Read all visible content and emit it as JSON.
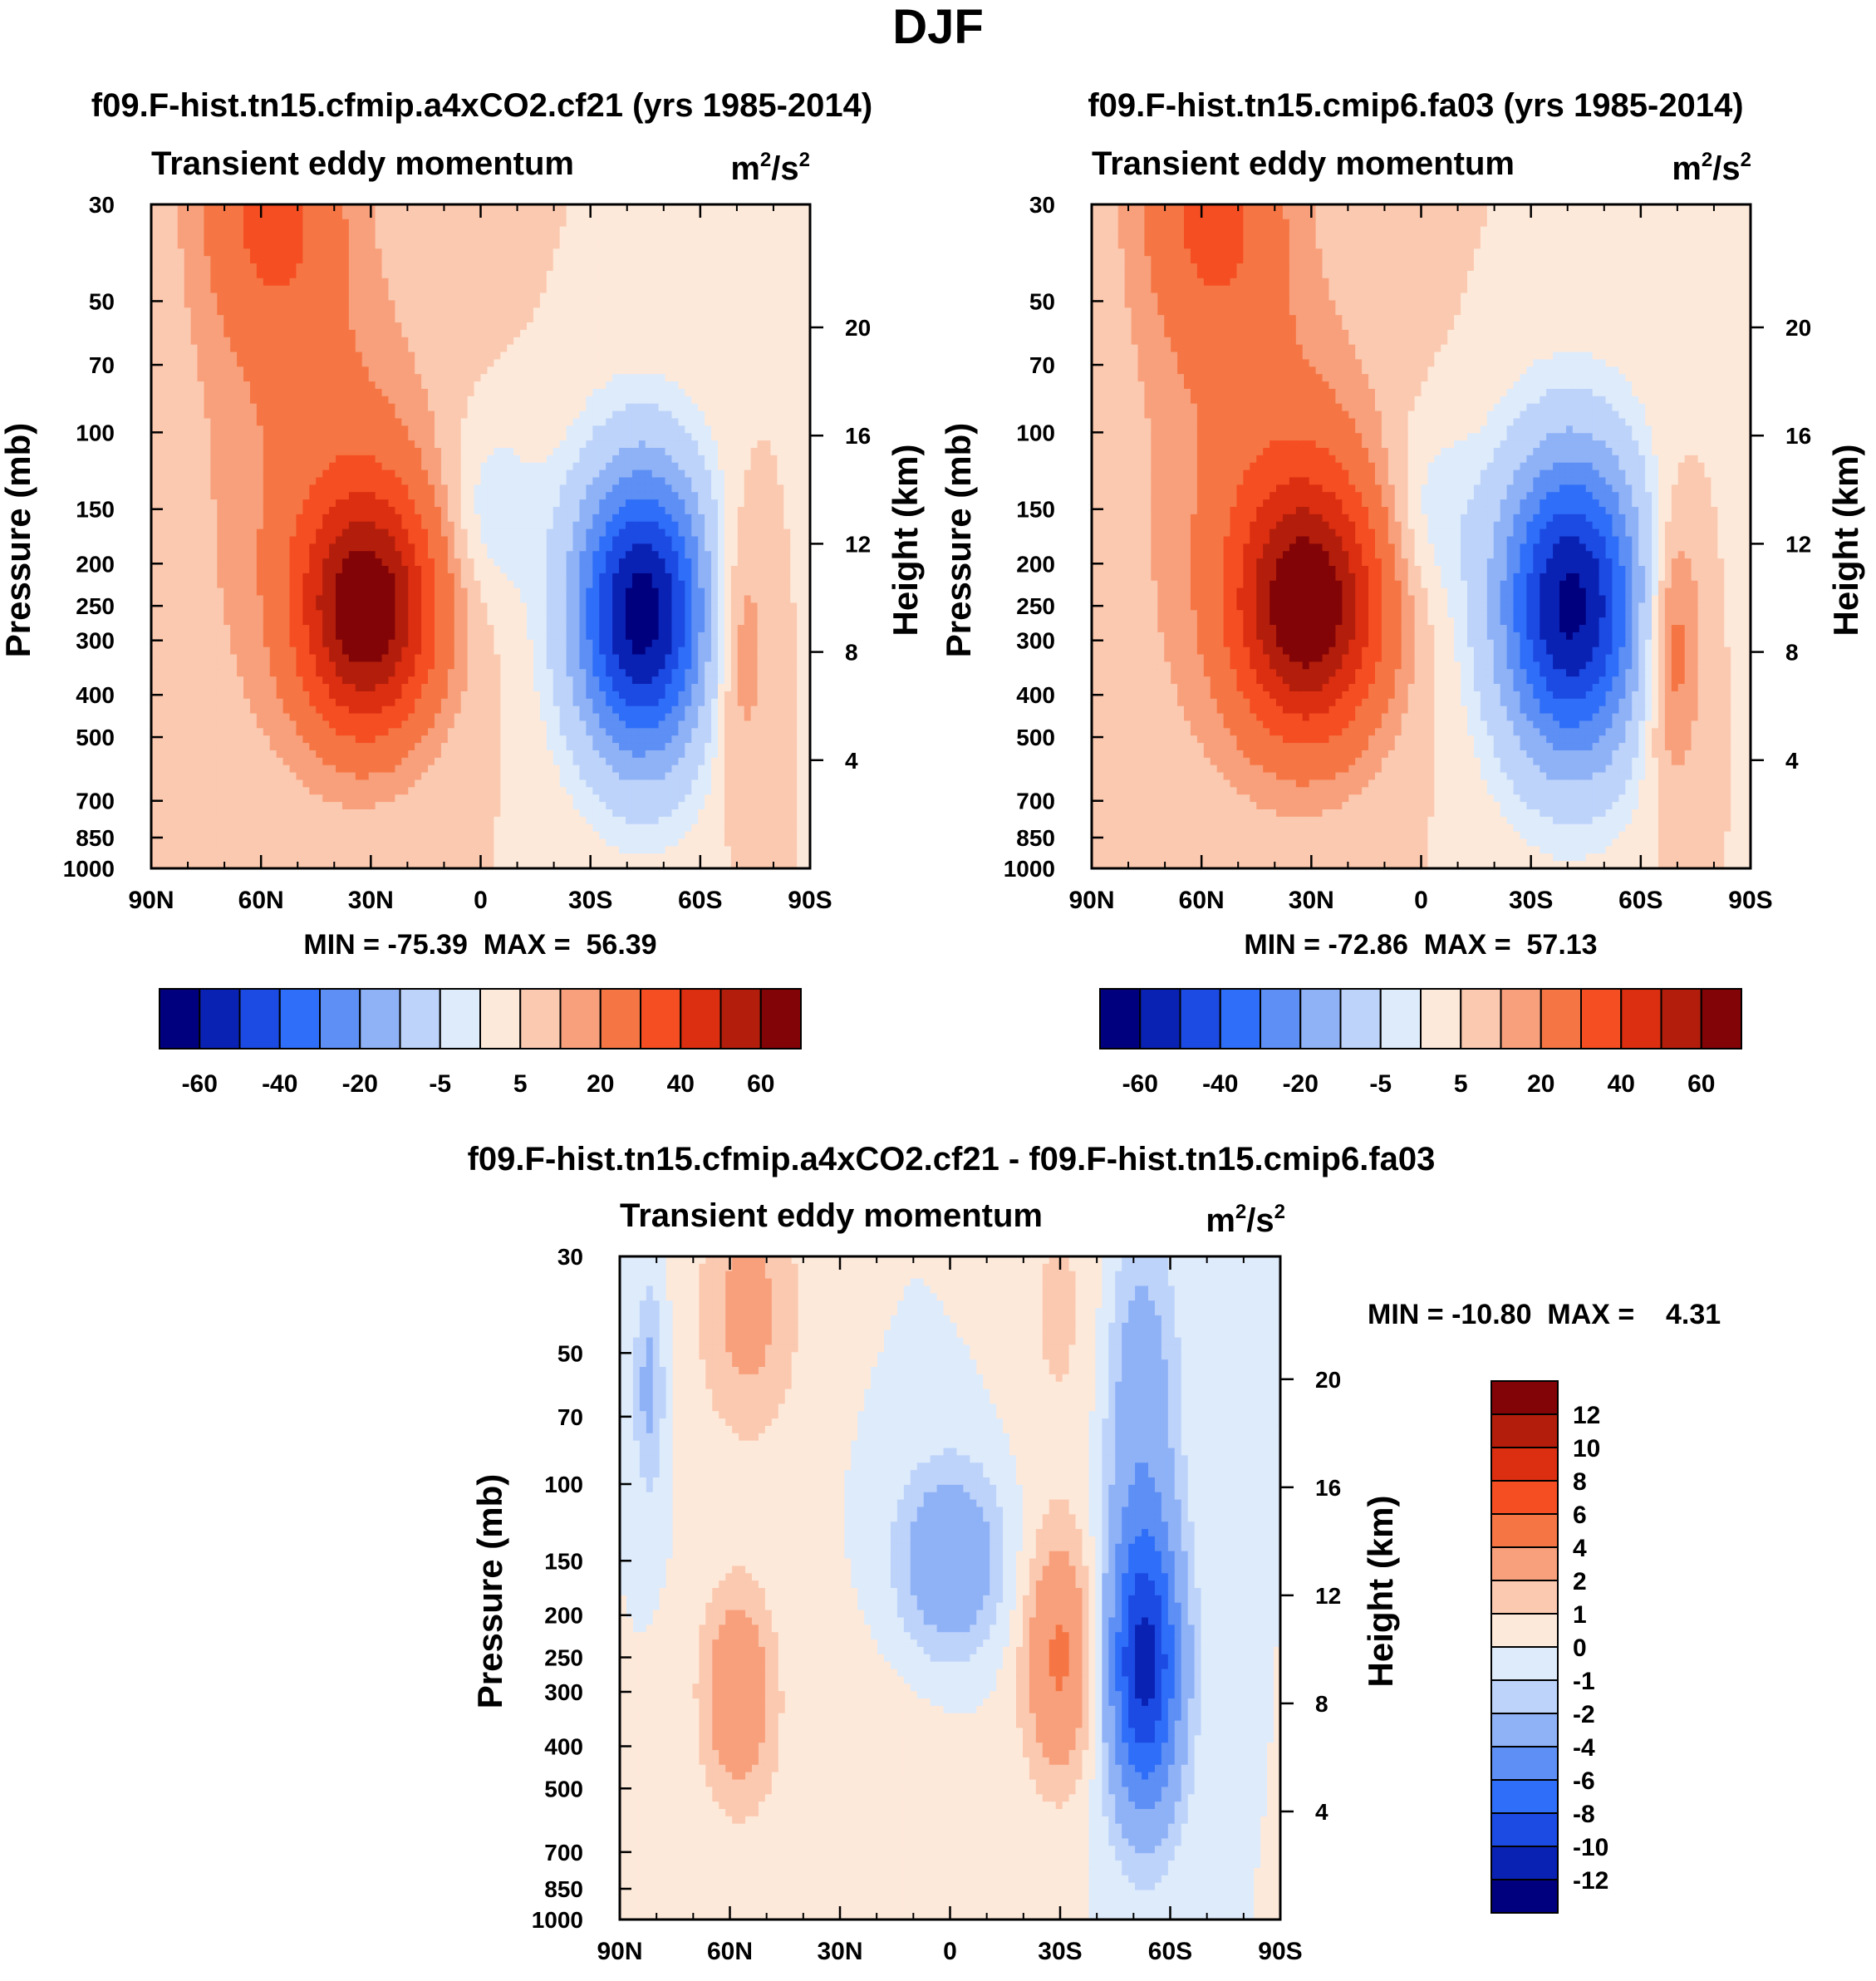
{
  "title": "DJF",
  "colors": {
    "panel_scale": [
      "#00007f",
      "#0a22b4",
      "#1c4be3",
      "#2f6ef8",
      "#5d8ff5",
      "#8fb2f7",
      "#bdd3fa",
      "#deebfb",
      "#fde9da",
      "#fbc9b0",
      "#f8a07c",
      "#f57644",
      "#f54e22",
      "#dc2e10",
      "#b21e0b",
      "#830407"
    ],
    "diff_scale": [
      "#00007f",
      "#0a22b4",
      "#1c4be3",
      "#2f6ef8",
      "#5d8ff5",
      "#8fb2f7",
      "#bdd3fa",
      "#deebfb",
      "#fde9da",
      "#fbc9b0",
      "#f8a07c",
      "#f57644",
      "#f54e22",
      "#dc2e10",
      "#b21e0b",
      "#830407"
    ]
  },
  "chart_data": [
    {
      "type": "contour",
      "id": "panel_a4xCO2",
      "title": "f09.F-hist.tn15.cfmip.a4xCO2.cf21 (yrs 1985-2014)",
      "subtitle": "Transient eddy momentum",
      "units": "m²/s²",
      "units_base": "m",
      "units_exp": "2",
      "units_sep": "/s",
      "units_exp2": "2",
      "xlabel": "",
      "ylabel": "Pressure (mb)",
      "ylabel_right": "Height (km)",
      "x_ticks": [
        "90N",
        "60N",
        "30N",
        "0",
        "30S",
        "60S",
        "90S"
      ],
      "x_values": [
        90,
        60,
        30,
        0,
        -30,
        -60,
        -90
      ],
      "xlim": [
        90,
        -90
      ],
      "y_ticks": [
        "30",
        "50",
        "70",
        "100",
        "150",
        "200",
        "250",
        "300",
        "400",
        "500",
        "700",
        "850",
        "1000"
      ],
      "y_values": [
        30,
        50,
        70,
        100,
        150,
        200,
        250,
        300,
        400,
        500,
        700,
        850,
        1000
      ],
      "ylim": [
        1000,
        30
      ],
      "right_ticks": [
        "20",
        "16",
        "12",
        "8",
        "4"
      ],
      "right_values": [
        20,
        16,
        12,
        8,
        4
      ],
      "min": -75.39,
      "max": 56.39,
      "stats_label": "MIN = -75.39  MAX =  56.39",
      "levels": [
        -70,
        -60,
        -50,
        -40,
        -30,
        -20,
        -10,
        -5,
        0,
        5,
        10,
        20,
        30,
        40,
        50,
        60
      ],
      "colorbar_labels": [
        "-60",
        "-40",
        "-20",
        "-5",
        "5",
        "20",
        "40",
        "60"
      ],
      "features": [
        {
          "lat": 31,
          "p": 260,
          "amp": 56.4,
          "sx": 13,
          "sy": 0.45
        },
        {
          "lat": 57,
          "p": 30,
          "amp": 22,
          "sx": 14,
          "sy": 0.55
        },
        {
          "lat": 40,
          "p": 110,
          "amp": 10,
          "sx": 20,
          "sy": 0.7
        },
        {
          "lat": -44,
          "p": 260,
          "amp": -75.4,
          "sx": 13,
          "sy": 0.55
        },
        {
          "lat": -3,
          "p": 150,
          "amp": -9,
          "sx": 9,
          "sy": 0.35
        },
        {
          "lat": -70,
          "p": 300,
          "amp": 14,
          "sx": 6,
          "sy": 0.5
        },
        {
          "lat": 75,
          "p": 350,
          "amp": 3,
          "sx": 25,
          "sy": 1.2
        }
      ]
    },
    {
      "type": "contour",
      "id": "panel_cmip6",
      "title": "f09.F-hist.tn15.cmip6.fa03 (yrs 1985-2014)",
      "subtitle": "Transient eddy momentum",
      "units": "m²/s²",
      "units_base": "m",
      "units_exp": "2",
      "units_sep": "/s",
      "units_exp2": "2",
      "xlabel": "",
      "ylabel": "Pressure (mb)",
      "ylabel_right": "Height (km)",
      "x_ticks": [
        "90N",
        "60N",
        "30N",
        "0",
        "30S",
        "60S",
        "90S"
      ],
      "x_values": [
        90,
        60,
        30,
        0,
        -30,
        -60,
        -90
      ],
      "xlim": [
        90,
        -90
      ],
      "y_ticks": [
        "30",
        "50",
        "70",
        "100",
        "150",
        "200",
        "250",
        "300",
        "400",
        "500",
        "700",
        "850",
        "1000"
      ],
      "y_values": [
        30,
        50,
        70,
        100,
        150,
        200,
        250,
        300,
        400,
        500,
        700,
        850,
        1000
      ],
      "ylim": [
        1000,
        30
      ],
      "right_ticks": [
        "20",
        "16",
        "12",
        "8",
        "4"
      ],
      "right_values": [
        20,
        16,
        12,
        8,
        4
      ],
      "min": -72.86,
      "max": 57.13,
      "stats_label": "MIN = -72.86  MAX =  57.13",
      "levels": [
        -70,
        -60,
        -50,
        -40,
        -30,
        -20,
        -10,
        -5,
        0,
        5,
        10,
        20,
        30,
        40,
        50,
        60
      ],
      "colorbar_labels": [
        "-60",
        "-40",
        "-20",
        "-5",
        "5",
        "20",
        "40",
        "60"
      ],
      "features": [
        {
          "lat": 31,
          "p": 255,
          "amp": 57.1,
          "sx": 14,
          "sy": 0.48
        },
        {
          "lat": 57,
          "p": 30,
          "amp": 22,
          "sx": 14,
          "sy": 0.55
        },
        {
          "lat": 40,
          "p": 110,
          "amp": 10,
          "sx": 20,
          "sy": 0.7
        },
        {
          "lat": -41,
          "p": 250,
          "amp": -72.9,
          "sx": 14,
          "sy": 0.58
        },
        {
          "lat": -3,
          "p": 150,
          "amp": -8,
          "sx": 9,
          "sy": 0.35
        },
        {
          "lat": -68,
          "p": 300,
          "amp": 20,
          "sx": 6,
          "sy": 0.5
        },
        {
          "lat": 75,
          "p": 350,
          "amp": 3,
          "sx": 25,
          "sy": 1.2
        }
      ]
    },
    {
      "type": "contour",
      "id": "panel_diff",
      "title": "f09.F-hist.tn15.cfmip.a4xCO2.cf21 - f09.F-hist.tn15.cmip6.fa03",
      "subtitle": "Transient eddy momentum",
      "units": "m²/s²",
      "units_base": "m",
      "units_exp": "2",
      "units_sep": "/s",
      "units_exp2": "2",
      "xlabel": "",
      "ylabel": "Pressure (mb)",
      "ylabel_right": "Height (km)",
      "x_ticks": [
        "90N",
        "60N",
        "30N",
        "0",
        "30S",
        "60S",
        "90S"
      ],
      "x_values": [
        90,
        60,
        30,
        0,
        -30,
        -60,
        -90
      ],
      "xlim": [
        90,
        -90
      ],
      "y_ticks": [
        "30",
        "50",
        "70",
        "100",
        "150",
        "200",
        "250",
        "300",
        "400",
        "500",
        "700",
        "850",
        "1000"
      ],
      "y_values": [
        30,
        50,
        70,
        100,
        150,
        200,
        250,
        300,
        400,
        500,
        700,
        850,
        1000
      ],
      "ylim": [
        1000,
        30
      ],
      "right_ticks": [
        "20",
        "16",
        "12",
        "8",
        "4"
      ],
      "right_values": [
        20,
        16,
        12,
        8,
        4
      ],
      "min": -10.8,
      "max": 4.31,
      "stats_label": "MIN = -10.80  MAX =    4.31",
      "levels": [
        -12,
        -10,
        -8,
        -6,
        -4,
        -2,
        -1,
        0,
        1,
        2,
        4,
        6,
        8,
        10,
        12
      ],
      "colorbar_labels": [
        "12",
        "10",
        "8",
        "6",
        "4",
        "2",
        "1",
        "0",
        "-1",
        "-2",
        "-4",
        "-6",
        "-8",
        "-10",
        "-12"
      ],
      "features": [
        {
          "lat": -53,
          "p": 260,
          "amp": -10.8,
          "sx": 7,
          "sy": 0.55
        },
        {
          "lat": -52,
          "p": 60,
          "amp": -3,
          "sx": 7,
          "sy": 0.6
        },
        {
          "lat": 0,
          "p": 150,
          "amp": -4,
          "sx": 10,
          "sy": 0.35
        },
        {
          "lat": -30,
          "p": 250,
          "amp": 4.3,
          "sx": 7,
          "sy": 0.45
        },
        {
          "lat": 58,
          "p": 300,
          "amp": 3.5,
          "sx": 7,
          "sy": 0.4
        },
        {
          "lat": 55,
          "p": 40,
          "amp": 2.5,
          "sx": 10,
          "sy": 0.5
        },
        {
          "lat": 82,
          "p": 60,
          "amp": -2.5,
          "sx": 3,
          "sy": 0.4
        },
        {
          "lat": -30,
          "p": 40,
          "amp": 1.2,
          "sx": 9,
          "sy": 0.6
        },
        {
          "lat": 20,
          "p": 600,
          "amp": 0.6,
          "sx": 25,
          "sy": 0.7
        }
      ]
    }
  ]
}
